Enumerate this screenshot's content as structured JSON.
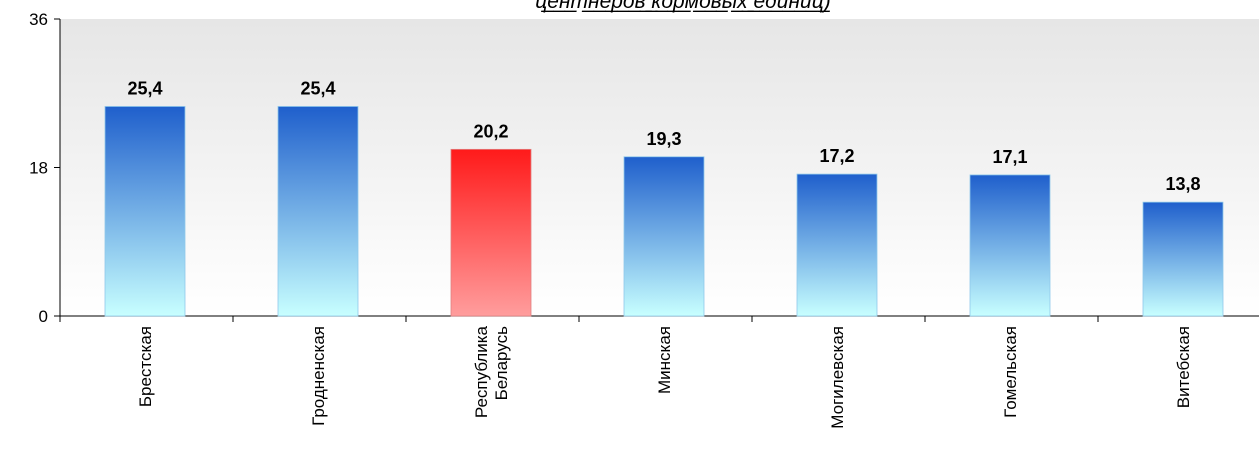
{
  "chart_data": {
    "type": "bar",
    "title": "ц̲е̲н̲т̲н̲е̲р̲о̲в̲ ̲к̲о̲р̲м̲о̲в̲ы̲х̲ ̲е̲д̲и̲н̲и̲ц̲)",
    "categories": [
      "Брестская",
      "Гродненская",
      "Республика Беларусь",
      "Минская",
      "Могилевская",
      "Гомельская",
      "Витебская"
    ],
    "values": [
      25.4,
      25.4,
      20.2,
      19.3,
      17.2,
      17.1,
      13.8
    ],
    "value_labels": [
      "25,4",
      "25,4",
      "20,2",
      "19,3",
      "17,2",
      "17,1",
      "13,8"
    ],
    "yticks": [
      "0",
      "18",
      "36"
    ],
    "ylim": [
      0,
      36
    ],
    "grid": false,
    "highlight_category": "Республика Беларусь",
    "colors": {
      "bar_top": "#1f5fcc",
      "bar_bottom": "#c8ffff",
      "highlight_top": "#ff1a1a",
      "highlight_bottom": "#ff9d9d",
      "plot_bg_top": "#e6e6e6",
      "plot_bg_bottom": "#ffffff"
    }
  }
}
